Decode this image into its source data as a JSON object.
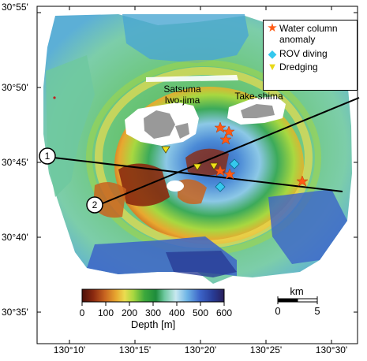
{
  "latitude_labels": [
    "30°55'",
    "30°50'",
    "30°45'",
    "30°40'",
    "30°35'"
  ],
  "longitude_labels": [
    "130°10'",
    "130°15'",
    "130°20'",
    "130°25'",
    "130°30'"
  ],
  "islands": {
    "satsuma_line1": "Satsuma",
    "satsuma_line2": "Iwo-jima",
    "take": "Take-shima"
  },
  "legend": {
    "anomaly_line1": "Water column",
    "anomaly_line2": "anomaly",
    "rov": "ROV diving",
    "dredging": "Dredging",
    "anomaly_color": "#ff5a14",
    "rov_color": "#35c8ee",
    "dredging_color": "#f0e11a"
  },
  "profiles": {
    "line1_label": "1",
    "line2_label": "2"
  },
  "colorbar": {
    "ticks": [
      "0",
      "100",
      "200",
      "300",
      "400",
      "500",
      "600"
    ],
    "title": "Depth [m]",
    "colors": [
      "#4a0e08",
      "#8b2a10",
      "#c86420",
      "#e8a830",
      "#eadc50",
      "#a8d840",
      "#3ca83c",
      "#1e8c3c",
      "#6ec8a0",
      "#c8e8f0",
      "#6eb4e6",
      "#3c64c8",
      "#283c96",
      "#281e5a"
    ]
  },
  "scalebar": {
    "title": "km",
    "label_start": "0",
    "label_end": "5"
  }
}
